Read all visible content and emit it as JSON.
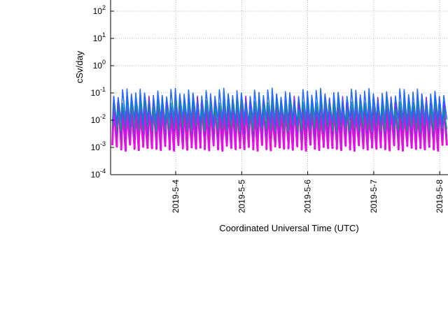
{
  "chart_data": {
    "type": "line",
    "title": "",
    "xlabel": "Coordinated Universal Time (UTC)",
    "ylabel": "cSv/day",
    "y_scale": "log",
    "ylim": [
      0.0001,
      300
    ],
    "y_ticks": [
      {
        "base": "10",
        "exp": "2",
        "value": 100
      },
      {
        "base": "10",
        "exp": "1",
        "value": 10
      },
      {
        "base": "10",
        "exp": "0",
        "value": 1
      },
      {
        "base": "10",
        "exp": "-1",
        "value": 0.1
      },
      {
        "base": "10",
        "exp": "-2",
        "value": 0.01
      },
      {
        "base": "10",
        "exp": "-3",
        "value": 0.001
      },
      {
        "base": "10",
        "exp": "-4",
        "value": 0.0001
      }
    ],
    "xlim": [
      "2019-05-03 01:00",
      "2019-05-08 02:00"
    ],
    "x_ticks": [
      {
        "label": "2019-5-4",
        "date": "2019-05-04"
      },
      {
        "label": "2019-5-5",
        "date": "2019-05-05"
      },
      {
        "label": "2019-5-6",
        "date": "2019-05-06"
      },
      {
        "label": "2019-5-7",
        "date": "2019-05-07"
      },
      {
        "label": "2019-5-8",
        "date": "2019-05-08"
      }
    ],
    "grid": true,
    "legend": "none",
    "pattern": "periodic dose-rate spikes (about every 1.6 hours) over 2019-5-3 to 2019-5-8",
    "series": [
      {
        "color": "#e600e6",
        "peak": 0.03,
        "trough": 0.0012
      },
      {
        "color": "#c020d0",
        "peak": 0.045,
        "trough": 0.0025
      },
      {
        "color": "#8a2be2",
        "peak": 0.06,
        "trough": 0.004
      },
      {
        "color": "#009e8a",
        "peak": 0.05,
        "trough": 0.006
      },
      {
        "color": "#1e64ff",
        "peak": 0.1,
        "trough": 0.01
      }
    ]
  }
}
